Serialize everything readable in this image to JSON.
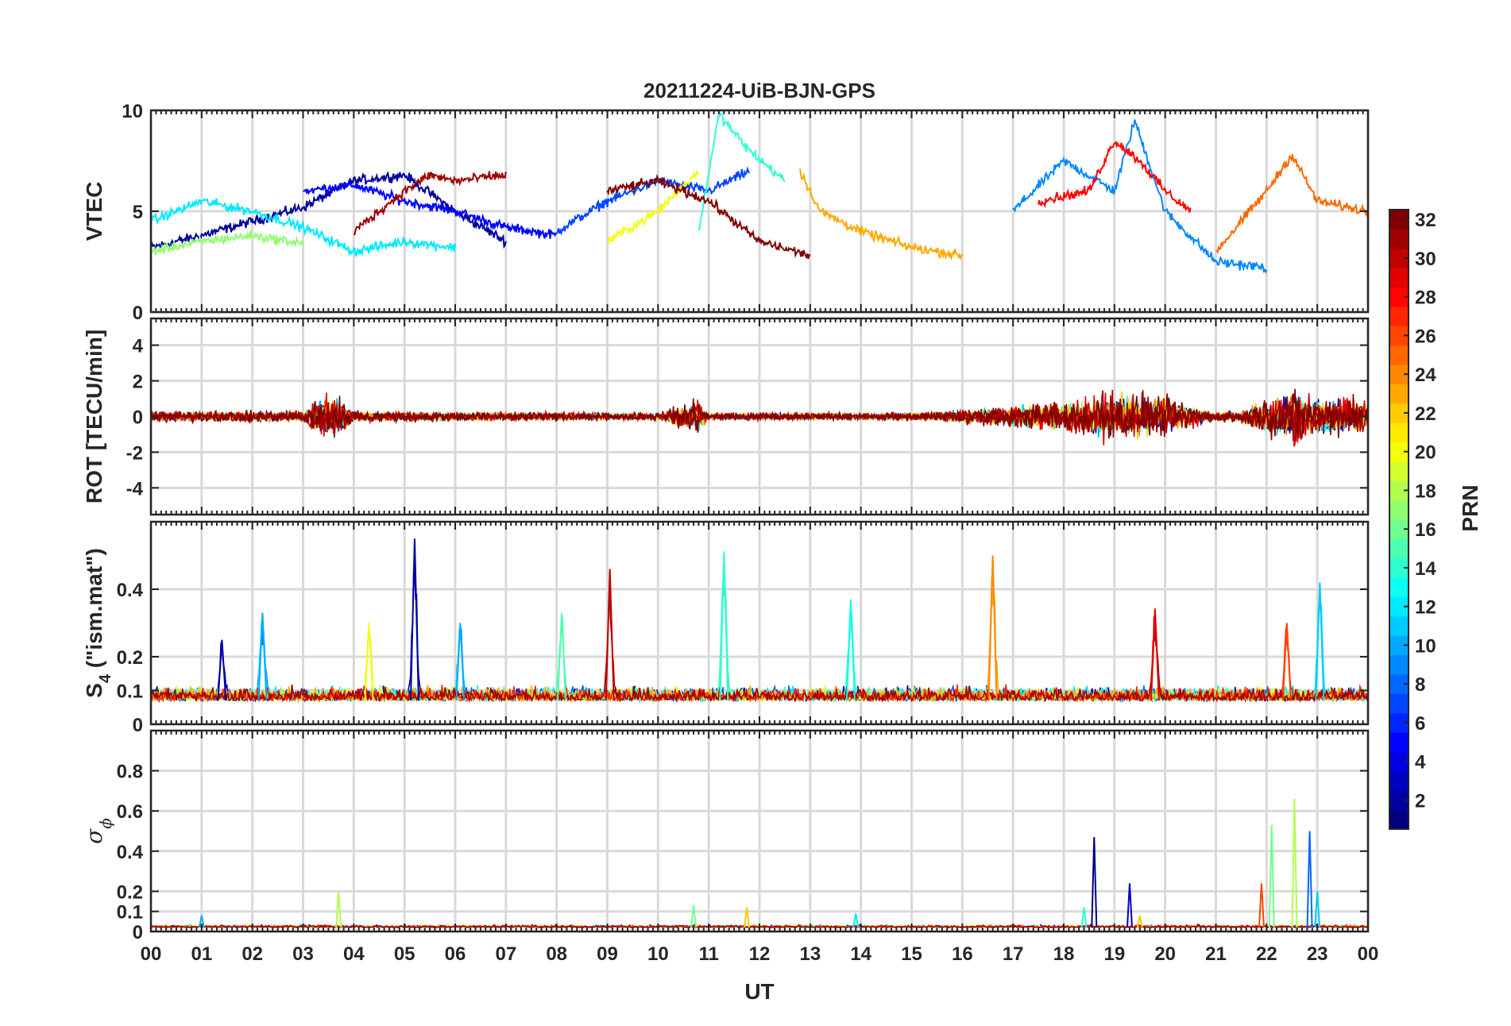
{
  "chart_data": [
    {
      "type": "line",
      "title": "20211224-UiB-BJN-GPS",
      "ylabel": "VTEC",
      "ylim": [
        0,
        10
      ],
      "yticks": [
        0,
        5,
        10
      ],
      "ytick_labels": [
        "0",
        "5",
        "10"
      ],
      "xlim": [
        0,
        24
      ],
      "grid": true,
      "series": [
        {
          "prn": 2,
          "x": [
            0,
            1,
            2,
            3,
            4,
            5,
            6,
            7
          ],
          "y": [
            3.2,
            3.8,
            4.5,
            5.2,
            6.5,
            6.8,
            5.0,
            3.5
          ]
        },
        {
          "prn": 5,
          "x": [
            3,
            4,
            5,
            6,
            7,
            8
          ],
          "y": [
            6.0,
            6.3,
            5.5,
            5.0,
            4.2,
            3.8
          ]
        },
        {
          "prn": 7,
          "x": [
            8,
            9,
            10,
            11,
            11.8
          ],
          "y": [
            4.0,
            5.5,
            6.5,
            6.0,
            7.0
          ]
        },
        {
          "prn": 9,
          "x": [
            17,
            18,
            19,
            19.4,
            20,
            21,
            22
          ],
          "y": [
            5.0,
            7.5,
            6.0,
            9.5,
            5.0,
            2.5,
            2.2
          ]
        },
        {
          "prn": 12,
          "x": [
            0,
            1,
            2,
            3,
            4,
            5,
            6
          ],
          "y": [
            4.5,
            5.5,
            5.0,
            4.2,
            3.0,
            3.5,
            3.2
          ]
        },
        {
          "prn": 14,
          "x": [
            10.8,
            11.2,
            11.8,
            12.5
          ],
          "y": [
            4.0,
            9.8,
            8.0,
            6.5
          ]
        },
        {
          "prn": 17,
          "x": [
            0,
            1,
            2,
            3
          ],
          "y": [
            3.0,
            3.5,
            3.8,
            3.4
          ]
        },
        {
          "prn": 20,
          "x": [
            9,
            10,
            10.8
          ],
          "y": [
            3.5,
            5.0,
            7.0
          ]
        },
        {
          "prn": 23,
          "x": [
            12.8,
            13.2,
            14,
            15,
            16
          ],
          "y": [
            7.0,
            5.0,
            4.0,
            3.2,
            2.8
          ]
        },
        {
          "prn": 25,
          "x": [
            21,
            22,
            22.5,
            23,
            24
          ],
          "y": [
            3.0,
            6.0,
            7.8,
            5.5,
            5.0
          ]
        },
        {
          "prn": 28,
          "x": [
            17.5,
            18.5,
            19,
            19.5,
            20,
            20.5
          ],
          "y": [
            5.5,
            6.0,
            8.5,
            7.5,
            6.0,
            5.0
          ]
        },
        {
          "prn": 31,
          "x": [
            4,
            5,
            5.5,
            6,
            7
          ],
          "y": [
            4.0,
            6.0,
            6.8,
            6.5,
            6.8
          ]
        },
        {
          "prn": 32,
          "x": [
            9,
            10,
            11,
            12,
            13
          ],
          "y": [
            6.0,
            6.5,
            5.5,
            3.5,
            2.8
          ]
        }
      ]
    },
    {
      "type": "line",
      "ylabel": "ROT [TECU/min]",
      "ylim": [
        -5.5,
        5.5
      ],
      "yticks": [
        -4,
        -2,
        0,
        2,
        4
      ],
      "ytick_labels": [
        "-4",
        "-2",
        "0",
        "2",
        "4"
      ],
      "xlim": [
        0,
        24
      ],
      "grid": true,
      "noise_envelope": {
        "x": [
          0,
          3,
          3.2,
          3.7,
          4,
          10,
          10.8,
          11,
          15,
          16,
          17,
          18,
          19,
          20,
          21,
          21.5,
          22.5,
          23,
          24
        ],
        "amplitude": [
          0.6,
          0.6,
          1.8,
          2.5,
          0.6,
          0.4,
          1.8,
          0.4,
          0.4,
          0.8,
          1.2,
          1.8,
          2.8,
          2.2,
          0.5,
          0.8,
          3.2,
          2.0,
          2.2
        ]
      }
    },
    {
      "type": "line",
      "ylabel": "S4 (\"ism.mat\")",
      "ylabel_main": "S",
      "ylabel_sub": "4",
      "ylabel_rest": " (\"ism.mat\")",
      "ylim": [
        0,
        0.6
      ],
      "yticks": [
        0,
        0.1,
        0.2,
        0.4
      ],
      "ytick_labels": [
        "0",
        "0.1",
        "0.2",
        "0.4"
      ],
      "xlim": [
        0,
        24
      ],
      "grid": true,
      "baseline": 0.07,
      "peaks": [
        {
          "x": 1.4,
          "y": 0.25,
          "prn": 2
        },
        {
          "x": 2.2,
          "y": 0.33,
          "prn": 10
        },
        {
          "x": 4.3,
          "y": 0.3,
          "prn": 20
        },
        {
          "x": 5.2,
          "y": 0.55,
          "prn": 2
        },
        {
          "x": 6.1,
          "y": 0.3,
          "prn": 10
        },
        {
          "x": 8.1,
          "y": 0.33,
          "prn": 15
        },
        {
          "x": 9.05,
          "y": 0.46,
          "prn": 30
        },
        {
          "x": 11.3,
          "y": 0.51,
          "prn": 14
        },
        {
          "x": 13.8,
          "y": 0.37,
          "prn": 13
        },
        {
          "x": 16.6,
          "y": 0.5,
          "prn": 24
        },
        {
          "x": 19.8,
          "y": 0.34,
          "prn": 29
        },
        {
          "x": 22.4,
          "y": 0.3,
          "prn": 26
        },
        {
          "x": 23.05,
          "y": 0.42,
          "prn": 11
        }
      ]
    },
    {
      "type": "line",
      "ylabel": "σ ϕ",
      "ylabel_main": "σ",
      "ylabel_sub": "ϕ",
      "ylim": [
        0,
        1
      ],
      "yticks": [
        0,
        0.1,
        0.2,
        0.4,
        0.6,
        0.8
      ],
      "ytick_labels": [
        "0",
        "0.1",
        "0.2",
        "0.4",
        "0.6",
        "0.8"
      ],
      "xlim": [
        0,
        24
      ],
      "xlabel": "UT",
      "xticks": [
        0,
        1,
        2,
        3,
        4,
        5,
        6,
        7,
        8,
        9,
        10,
        11,
        12,
        13,
        14,
        15,
        16,
        17,
        18,
        19,
        20,
        21,
        22,
        23,
        24
      ],
      "xtick_labels": [
        "00",
        "01",
        "02",
        "03",
        "04",
        "05",
        "06",
        "07",
        "08",
        "09",
        "10",
        "11",
        "12",
        "13",
        "14",
        "15",
        "16",
        "17",
        "18",
        "19",
        "20",
        "21",
        "22",
        "23",
        "00"
      ],
      "grid": true,
      "baseline": 0.02,
      "spikes": [
        {
          "x": 1.0,
          "y": 0.08,
          "prn": 10
        },
        {
          "x": 3.7,
          "y": 0.2,
          "prn": 18
        },
        {
          "x": 10.7,
          "y": 0.13,
          "prn": 16
        },
        {
          "x": 11.75,
          "y": 0.12,
          "prn": 22
        },
        {
          "x": 13.9,
          "y": 0.09,
          "prn": 12
        },
        {
          "x": 18.4,
          "y": 0.12,
          "prn": 14
        },
        {
          "x": 18.6,
          "y": 0.47,
          "prn": 1
        },
        {
          "x": 19.3,
          "y": 0.24,
          "prn": 3
        },
        {
          "x": 19.5,
          "y": 0.08,
          "prn": 22
        },
        {
          "x": 21.9,
          "y": 0.24,
          "prn": 26
        },
        {
          "x": 22.1,
          "y": 0.53,
          "prn": 16
        },
        {
          "x": 22.55,
          "y": 0.66,
          "prn": 18
        },
        {
          "x": 22.85,
          "y": 0.5,
          "prn": 8
        },
        {
          "x": 23.0,
          "y": 0.2,
          "prn": 11
        }
      ]
    }
  ],
  "colorbar": {
    "label": "PRN",
    "min": 1,
    "max": 32,
    "ticks": [
      2,
      4,
      6,
      8,
      10,
      12,
      14,
      16,
      18,
      20,
      22,
      24,
      26,
      28,
      30,
      32
    ],
    "tick_labels": [
      "2",
      "4",
      "6",
      "8",
      "10",
      "12",
      "14",
      "16",
      "18",
      "20",
      "22",
      "24",
      "26",
      "28",
      "30",
      "32"
    ],
    "colormap": "jet"
  }
}
